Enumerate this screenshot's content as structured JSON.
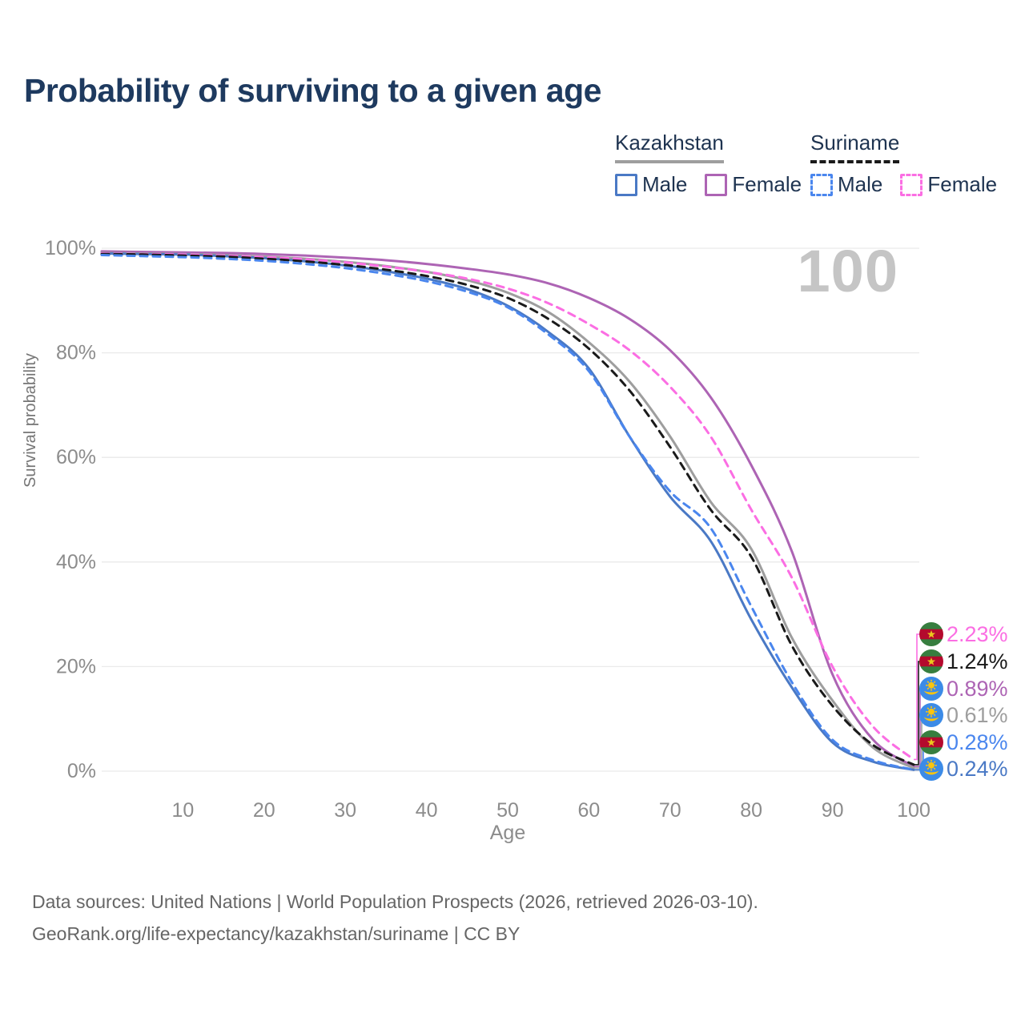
{
  "title": "Probability of surviving to a given age",
  "watermark_age": "100",
  "legend": {
    "countries": [
      {
        "name": "Kazakhstan",
        "line_color": "#9e9e9e",
        "line_style": "solid",
        "male": {
          "label": "Male",
          "color": "#4a79c5"
        },
        "female": {
          "label": "Female",
          "color": "#ad64b4"
        }
      },
      {
        "name": "Suriname",
        "line_color": "#1a1a1a",
        "line_style": "dashed",
        "male": {
          "label": "Male",
          "color": "#4a86ee"
        },
        "female": {
          "label": "Female",
          "color": "#fb6ee3"
        }
      }
    ]
  },
  "chart_data": {
    "type": "line",
    "xlabel": "Age",
    "ylabel": "Survival probability",
    "xlim": [
      0,
      100
    ],
    "ylim": [
      0,
      100
    ],
    "grid": true,
    "xticks": [
      10,
      20,
      30,
      40,
      50,
      60,
      70,
      80,
      90,
      100
    ],
    "yticks": [
      0,
      20,
      40,
      60,
      80,
      100
    ],
    "ytick_suffix": "%",
    "x": [
      0,
      5,
      10,
      15,
      20,
      25,
      30,
      35,
      40,
      45,
      50,
      55,
      60,
      65,
      70,
      75,
      80,
      85,
      90,
      95,
      100
    ],
    "series": [
      {
        "name": "Kazakhstan Female",
        "country": "Kazakhstan",
        "sex": "Female",
        "color": "#ad64b4",
        "dashed": false,
        "values": [
          99.4,
          99.3,
          99.2,
          99.1,
          98.9,
          98.6,
          98.2,
          97.7,
          97.0,
          96.1,
          95.0,
          93.3,
          90.5,
          86.5,
          80.5,
          71.5,
          58.5,
          42.0,
          18.5,
          6.0,
          0.89
        ]
      },
      {
        "name": "Kazakhstan Total",
        "country": "Kazakhstan",
        "sex": "Both",
        "color": "#9e9e9e",
        "dashed": false,
        "values": [
          99.1,
          99.0,
          98.9,
          98.7,
          98.4,
          98.0,
          97.4,
          96.6,
          95.5,
          93.9,
          91.5,
          87.8,
          82.0,
          74.5,
          64.0,
          51.5,
          42.5,
          25.5,
          13.5,
          4.5,
          0.61
        ]
      },
      {
        "name": "Kazakhstan Male",
        "country": "Kazakhstan",
        "sex": "Male",
        "color": "#4a79c5",
        "dashed": false,
        "values": [
          99.0,
          98.9,
          98.8,
          98.5,
          98.1,
          97.5,
          96.7,
          95.6,
          94.2,
          92.2,
          89.0,
          84.0,
          77.0,
          64.0,
          52.5,
          44.0,
          29.0,
          16.0,
          5.5,
          1.8,
          0.24
        ]
      },
      {
        "name": "Suriname Female",
        "country": "Suriname",
        "sex": "Female",
        "color": "#fb6ee3",
        "dashed": true,
        "values": [
          99.0,
          98.9,
          98.8,
          98.6,
          98.3,
          97.9,
          97.3,
          96.5,
          95.5,
          94.2,
          92.3,
          89.5,
          85.5,
          80.5,
          73.5,
          64.0,
          50.0,
          37.0,
          20.0,
          8.5,
          2.23
        ]
      },
      {
        "name": "Suriname Total",
        "country": "Suriname",
        "sex": "Both",
        "color": "#1a1a1a",
        "dashed": true,
        "values": [
          98.9,
          98.8,
          98.6,
          98.4,
          98.0,
          97.5,
          96.8,
          95.9,
          94.7,
          93.0,
          90.5,
          86.5,
          80.8,
          72.8,
          62.0,
          50.0,
          41.0,
          24.0,
          12.5,
          5.0,
          1.24
        ]
      },
      {
        "name": "Suriname Male",
        "country": "Suriname",
        "sex": "Male",
        "color": "#4a86ee",
        "dashed": true,
        "values": [
          98.7,
          98.5,
          98.3,
          98.0,
          97.6,
          97.0,
          96.2,
          95.1,
          93.7,
          91.7,
          88.7,
          83.5,
          76.5,
          64.0,
          53.5,
          46.5,
          31.5,
          17.0,
          6.0,
          2.1,
          0.28
        ]
      }
    ],
    "end_labels": [
      {
        "text": "2.23%",
        "value": 2.23,
        "series": "Suriname Female",
        "flag": "suriname",
        "color": "#fb6ee3"
      },
      {
        "text": "1.24%",
        "value": 1.24,
        "series": "Suriname Total",
        "flag": "suriname",
        "color": "#1a1a1a"
      },
      {
        "text": "0.89%",
        "value": 0.89,
        "series": "Kazakhstan Female",
        "flag": "kazakhstan",
        "color": "#ad64b4"
      },
      {
        "text": "0.61%",
        "value": 0.61,
        "series": "Kazakhstan Total",
        "flag": "kazakhstan",
        "color": "#9e9e9e"
      },
      {
        "text": "0.28%",
        "value": 0.28,
        "series": "Suriname Male",
        "flag": "suriname",
        "color": "#4a86ee"
      },
      {
        "text": "0.24%",
        "value": 0.24,
        "series": "Kazakhstan Male",
        "flag": "kazakhstan",
        "color": "#4a79c5"
      }
    ]
  },
  "colors": {
    "title": "#1e3a5f",
    "tick_label": "#8c8c8c",
    "axis_title": "#757575",
    "gridline": "#eaeaea",
    "watermark": "#c5c5c5",
    "footer": "#666666",
    "flag_suriname_green": "#377E3F",
    "flag_suriname_red": "#B40A2D",
    "flag_suriname_star": "#ECC81D",
    "flag_kazakhstan_blue": "#3C8BE7",
    "flag_kazakhstan_gold": "#FEC50C"
  },
  "footer": {
    "line1": "Data sources: United Nations | World Population Prospects (2026, retrieved 2026-03-10).",
    "line2": "GeoRank.org/life-expectancy/kazakhstan/suriname | CC BY"
  }
}
